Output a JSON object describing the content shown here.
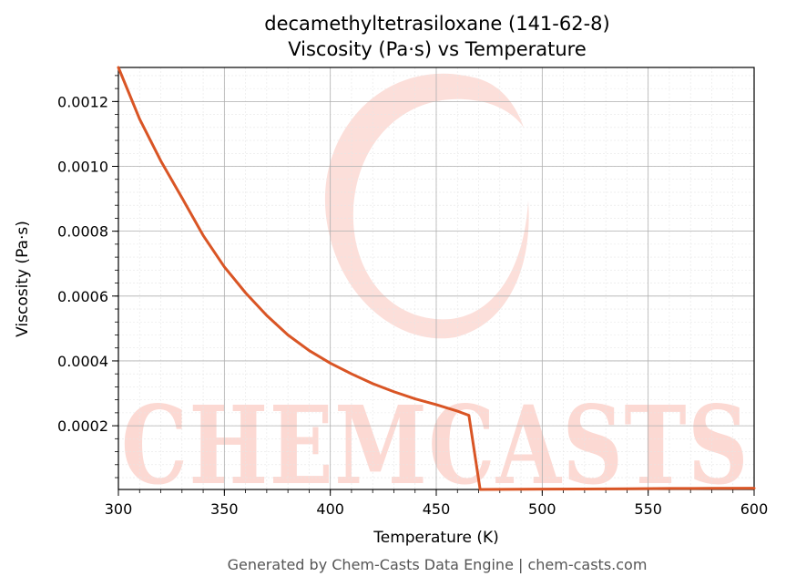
{
  "chart_data": {
    "type": "line",
    "title_lines": [
      "decamethyltetrasiloxane (141-62-8)",
      "Viscosity (Pa·s) vs Temperature"
    ],
    "xlabel": "Temperature (K)",
    "ylabel": "Viscosity (Pa·s)",
    "xlim": [
      300,
      600
    ],
    "ylim": [
      3.5e-06,
      0.001305
    ],
    "x_ticks": [
      300,
      350,
      400,
      450,
      500,
      550,
      600
    ],
    "x_tick_labels": [
      "300",
      "350",
      "400",
      "450",
      "500",
      "550",
      "600"
    ],
    "y_ticks": [
      0.0002,
      0.0004,
      0.0006,
      0.0008,
      0.001,
      0.0012
    ],
    "y_tick_labels": [
      "0.0002",
      "0.0004",
      "0.0006",
      "0.0008",
      "0.0010",
      "0.0012"
    ],
    "grid": true,
    "minor_grid": true,
    "series": [
      {
        "color": "#d95525",
        "x": [
          300,
          310,
          320,
          330,
          340,
          350,
          360,
          370,
          380,
          390,
          400,
          410,
          420,
          430,
          440,
          450,
          460,
          465.4,
          470.7,
          480,
          500,
          520,
          540,
          560,
          580,
          600
        ],
        "y": [
          0.001305,
          0.001146,
          0.001017,
          0.000903,
          0.000787,
          0.00069,
          0.00061,
          0.00054,
          0.00048,
          0.000432,
          0.000393,
          0.00036,
          0.00033,
          0.000305,
          0.000283,
          0.000265,
          0.000245,
          0.000232,
          3.5e-06,
          4e-06,
          4.5e-06,
          5e-06,
          5.5e-06,
          6.5e-06,
          7e-06,
          7.5e-06
        ]
      }
    ]
  },
  "watermark": {
    "text": "CHEMCASTS",
    "color": "#fcd9d3"
  },
  "footer": "Generated by Chem-Casts Data Engine | chem-casts.com"
}
